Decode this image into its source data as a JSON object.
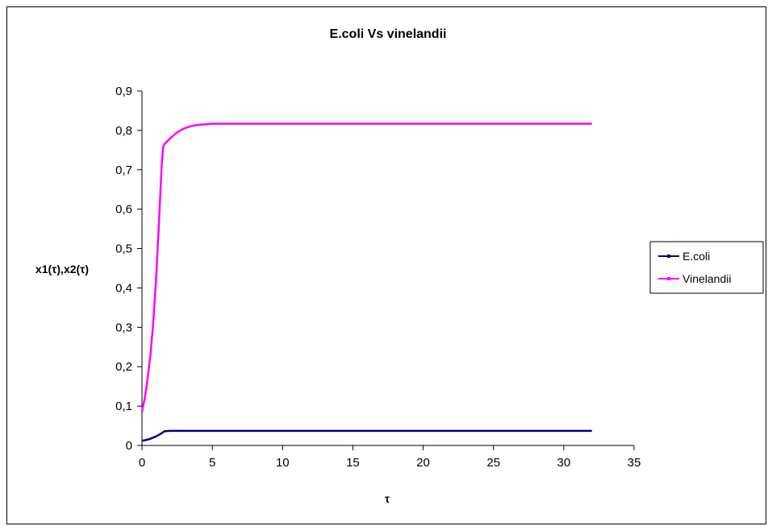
{
  "chart_data": {
    "type": "line",
    "title": "E.coli Vs vinelandii",
    "xlabel": "τ",
    "ylabel": "x1(τ),x2(τ)",
    "xlim": [
      0,
      35
    ],
    "ylim": [
      0,
      0.9
    ],
    "x_ticks": [
      0,
      5,
      10,
      15,
      20,
      25,
      30,
      35
    ],
    "y_ticks": [
      0,
      0.1,
      0.2,
      0.3,
      0.4,
      0.5,
      0.6,
      0.7,
      0.8,
      0.9
    ],
    "x_tick_labels": [
      "0",
      "5",
      "10",
      "15",
      "20",
      "25",
      "30",
      "35"
    ],
    "y_tick_labels": [
      "0",
      "0,1",
      "0,2",
      "0,3",
      "0,4",
      "0,5",
      "0,6",
      "0,7",
      "0,8",
      "0,9"
    ],
    "grid": false,
    "legend_position": "right",
    "series": [
      {
        "name": "E.coli",
        "color": "#000080",
        "x": [
          0,
          0.2,
          0.4,
          0.6,
          0.8,
          1.0,
          1.2,
          1.4,
          1.6,
          2,
          3,
          5,
          10,
          15,
          20,
          25,
          30,
          32
        ],
        "y": [
          0.012,
          0.013,
          0.015,
          0.017,
          0.02,
          0.023,
          0.027,
          0.031,
          0.036,
          0.037,
          0.037,
          0.037,
          0.037,
          0.037,
          0.037,
          0.037,
          0.037,
          0.037
        ]
      },
      {
        "name": "Vinelandii",
        "color": "#FF00FF",
        "x": [
          0,
          0.2,
          0.4,
          0.6,
          0.8,
          1.0,
          1.2,
          1.4,
          1.5,
          1.6,
          2.0,
          2.5,
          3.0,
          3.5,
          4,
          5,
          10,
          15,
          20,
          25,
          30,
          32
        ],
        "y": [
          0.085,
          0.12,
          0.17,
          0.23,
          0.31,
          0.42,
          0.56,
          0.71,
          0.757,
          0.765,
          0.78,
          0.795,
          0.805,
          0.811,
          0.814,
          0.817,
          0.817,
          0.817,
          0.817,
          0.817,
          0.817,
          0.817
        ]
      }
    ]
  }
}
